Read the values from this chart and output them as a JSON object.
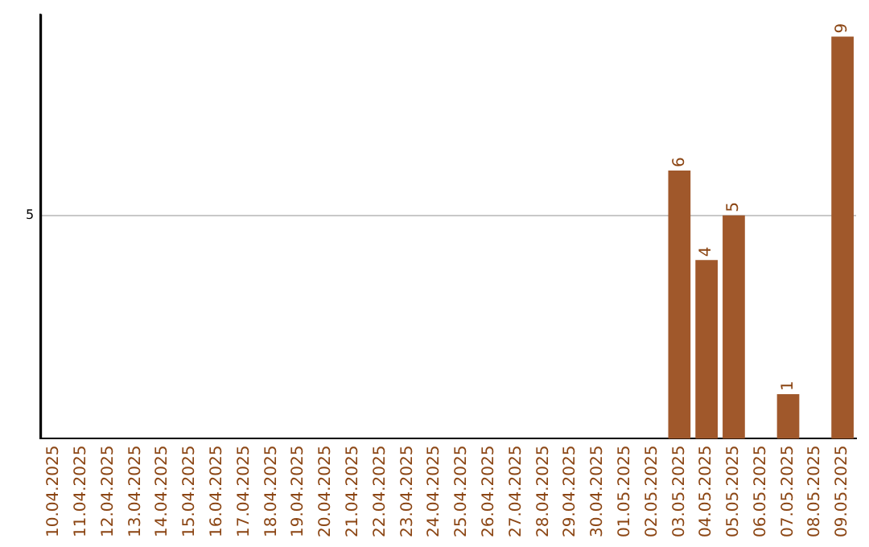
{
  "chart_data": {
    "type": "bar",
    "ylim": [
      0,
      9.5
    ],
    "categories": [
      "10.04.2025",
      "11.04.2025",
      "12.04.2025",
      "13.04.2025",
      "14.04.2025",
      "15.04.2025",
      "16.04.2025",
      "17.04.2025",
      "18.04.2025",
      "19.04.2025",
      "20.04.2025",
      "21.04.2025",
      "22.04.2025",
      "23.04.2025",
      "24.04.2025",
      "25.04.2025",
      "26.04.2025",
      "27.04.2025",
      "28.04.2025",
      "29.04.2025",
      "30.04.2025",
      "01.05.2025",
      "02.05.2025",
      "03.05.2025",
      "04.05.2025",
      "05.05.2025",
      "06.05.2025",
      "07.05.2025",
      "08.05.2025",
      "09.05.2025"
    ],
    "values": [
      null,
      null,
      null,
      null,
      null,
      null,
      null,
      null,
      null,
      null,
      null,
      null,
      null,
      null,
      null,
      null,
      null,
      null,
      null,
      null,
      null,
      null,
      null,
      6,
      4,
      5,
      null,
      1,
      null,
      9
    ],
    "data_labels": true,
    "color": "#a0582b",
    "yticks": [
      5
    ],
    "grid": "y",
    "legend": false
  }
}
